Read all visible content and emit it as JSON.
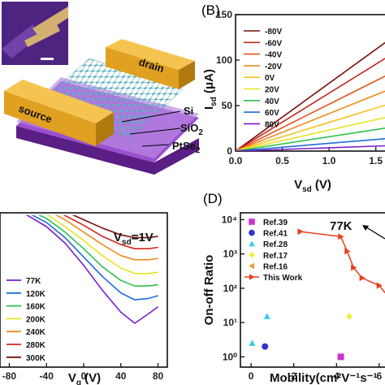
{
  "colors": {
    "gold": "#e8a525",
    "gold_dark": "#b87a10",
    "substrate_purple": "#7a2aa8",
    "substrate_top": "#a060d0",
    "lattice": "#5fb6c8",
    "inset_bg": "#5a2a8a"
  },
  "panel_a": {
    "labels": {
      "drain": "drain",
      "source": "source",
      "si": "Si",
      "sio2": "SiO",
      "sio2_sub": "2",
      "ptse2": "PtSe",
      "ptse2_sub": "2"
    }
  },
  "panel_b": {
    "letter": "(B)",
    "xlabel_main": "V",
    "xlabel_sub": "sd",
    "xlabel_unit": " (V)",
    "ylabel_main": "I",
    "ylabel_sub": "sd",
    "ylabel_unit": " (μA)"
  },
  "panel_c": {
    "annotation_main": "V",
    "annotation_sub": "sd",
    "annotation_tail": "=1V",
    "xlabel_main": "V",
    "xlabel_sub": "g",
    "xlabel_unit": " (V)"
  },
  "panel_d": {
    "letter": "(D)",
    "ylabel": "On-off Ratio",
    "xlabel": "Mobility(cm²V⁻¹s⁻¹",
    "annotation": "77K"
  },
  "chart_data": [
    {
      "type": "line",
      "panel": "B",
      "xlabel": "Vsd (V)",
      "ylabel": "Isd (μA)",
      "xlim": [
        0,
        1.65
      ],
      "ylim": [
        0,
        150
      ],
      "xticks": [
        "0.0",
        "0.5",
        "1.0",
        "1.5"
      ],
      "yticks": [
        "0",
        "50",
        "100",
        "150"
      ],
      "grid": false,
      "legend_position": "top-left",
      "series": [
        {
          "name": "-80V",
          "color": "#7a0f0f",
          "x": [
            0,
            1.65
          ],
          "y": [
            0,
            123
          ]
        },
        {
          "name": "-60V",
          "color": "#c0281e",
          "x": [
            0,
            1.65
          ],
          "y": [
            0,
            105
          ]
        },
        {
          "name": "-40V",
          "color": "#e8501e",
          "x": [
            0,
            1.65
          ],
          "y": [
            0,
            85
          ]
        },
        {
          "name": "-20V",
          "color": "#f08a1e",
          "x": [
            0,
            1.65
          ],
          "y": [
            0,
            68
          ]
        },
        {
          "name": "0V",
          "color": "#f5c21e",
          "x": [
            0,
            1.65
          ],
          "y": [
            0,
            52
          ]
        },
        {
          "name": "20V",
          "color": "#e6e41e",
          "x": [
            0,
            1.65
          ],
          "y": [
            0,
            38
          ]
        },
        {
          "name": "40V",
          "color": "#2ec24a",
          "x": [
            0,
            1.65
          ],
          "y": [
            0,
            26
          ]
        },
        {
          "name": "60V",
          "color": "#1e6ed8",
          "x": [
            0,
            1.65
          ],
          "y": [
            0,
            14
          ]
        },
        {
          "name": "80V",
          "color": "#7a1ec8",
          "x": [
            0,
            1.65
          ],
          "y": [
            0,
            6
          ]
        }
      ]
    },
    {
      "type": "line",
      "panel": "C",
      "xlabel": "Vg (V)",
      "xlim": [
        -90,
        90
      ],
      "xticks": [
        "-80",
        "-40",
        "0",
        "40",
        "80"
      ],
      "grid": false,
      "legend_position": "bottom-left",
      "series": [
        {
          "name": "77K",
          "color": "#7a1ec8",
          "x": [
            -80,
            -60,
            -40,
            -20,
            0,
            20,
            40,
            55,
            70,
            80
          ],
          "y": [
            0.93,
            0.88,
            0.8,
            0.68,
            0.52,
            0.34,
            0.18,
            0.1,
            0.17,
            0.22
          ]
        },
        {
          "name": "120K",
          "color": "#1e6ed8",
          "x": [
            -80,
            -60,
            -40,
            -20,
            0,
            20,
            40,
            55,
            70,
            80
          ],
          "y": [
            0.95,
            0.9,
            0.83,
            0.72,
            0.58,
            0.44,
            0.32,
            0.27,
            0.28,
            0.3
          ]
        },
        {
          "name": "160K",
          "color": "#2ec24a",
          "x": [
            -80,
            -60,
            -40,
            -20,
            0,
            20,
            40,
            55,
            70,
            80
          ],
          "y": [
            0.96,
            0.92,
            0.86,
            0.76,
            0.64,
            0.51,
            0.41,
            0.37,
            0.37,
            0.38
          ]
        },
        {
          "name": "200K",
          "color": "#e6e41e",
          "x": [
            -80,
            -60,
            -40,
            -20,
            0,
            20,
            40,
            55,
            70,
            80
          ],
          "y": [
            0.97,
            0.94,
            0.89,
            0.8,
            0.7,
            0.59,
            0.5,
            0.46,
            0.46,
            0.47
          ]
        },
        {
          "name": "240K",
          "color": "#f08a1e",
          "x": [
            -80,
            -60,
            -40,
            -20,
            0,
            20,
            40,
            55,
            70,
            80
          ],
          "y": [
            0.98,
            0.96,
            0.92,
            0.85,
            0.76,
            0.67,
            0.59,
            0.56,
            0.56,
            0.57
          ]
        },
        {
          "name": "280K",
          "color": "#d4251e",
          "x": [
            -80,
            -60,
            -40,
            -20,
            0,
            20,
            40,
            55,
            70,
            80
          ],
          "y": [
            0.99,
            0.97,
            0.94,
            0.88,
            0.81,
            0.73,
            0.67,
            0.64,
            0.64,
            0.65
          ]
        },
        {
          "name": "300K",
          "color": "#7a0f0f",
          "x": [
            -80,
            -60,
            -40,
            -20,
            0,
            20,
            40,
            55,
            70,
            80
          ],
          "y": [
            1.0,
            0.99,
            0.96,
            0.91,
            0.85,
            0.79,
            0.74,
            0.72,
            0.72,
            0.73
          ]
        }
      ]
    },
    {
      "type": "scatter",
      "panel": "D",
      "xlabel": "Mobility(cm²V⁻¹s⁻¹",
      "ylabel": "On-off Ratio",
      "xlim": [
        -0.5,
        6.5
      ],
      "ylim_log10": [
        -0.3,
        4.2
      ],
      "xticks": [
        "0",
        "2",
        "4",
        "6"
      ],
      "yticks": [
        "10⁰",
        "10¹",
        "10²",
        "10³",
        "10⁴"
      ],
      "y_scale": "log",
      "legend_position": "top-left",
      "series": [
        {
          "name": "Ref.39",
          "color": "#cc33cc",
          "marker": "square",
          "x": [
            4.2
          ],
          "y": [
            1
          ]
        },
        {
          "name": "Ref.41",
          "color": "#3333cc",
          "marker": "circle",
          "x": [
            0.65
          ],
          "y": [
            2
          ]
        },
        {
          "name": "Ref.28",
          "color": "#33ccee",
          "marker": "triangle-up",
          "x": [
            0.05,
            0.75
          ],
          "y": [
            2.5,
            15
          ]
        },
        {
          "name": "Ref.17",
          "color": "#eeee33",
          "marker": "diamond",
          "x": [
            4.6
          ],
          "y": [
            15
          ]
        },
        {
          "name": "Ref.16",
          "color": "#f09a30",
          "marker": "triangle-left",
          "x": [],
          "y": []
        },
        {
          "name": "This Work",
          "color": "#e8401e",
          "marker": "triangle-right",
          "connected": true,
          "x": [
            2.3,
            4.2,
            4.5,
            4.8,
            5.2,
            6.0,
            6.4
          ],
          "y": [
            4500,
            3200,
            1200,
            400,
            200,
            120,
            60
          ]
        }
      ]
    }
  ]
}
